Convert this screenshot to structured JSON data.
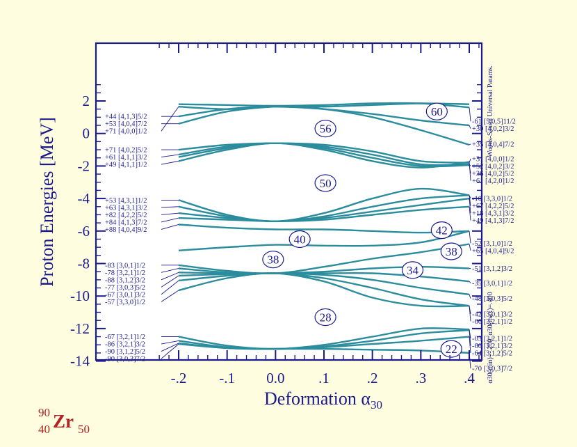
{
  "chart_data": {
    "type": "line",
    "title": "",
    "xlabel": "Deformation α30",
    "ylabel": "Proton Energies [MeV]",
    "xlim": [
      -0.25,
      0.45
    ],
    "ylim": [
      -15.3,
      3.2
    ],
    "x_ticks": [
      -0.2,
      -0.1,
      0.0,
      0.1,
      0.2,
      0.3,
      0.4
    ],
    "x_tick_labels": [
      "-.2",
      "-.1",
      "0.0",
      ".1",
      ".2",
      ".3",
      ".4"
    ],
    "y_ticks": [
      2,
      0,
      -2,
      -4,
      -6,
      -8,
      -10,
      -12,
      -14
    ],
    "y_tick_labels": [
      "2",
      "0",
      "-2",
      "-4",
      "-6",
      "-8",
      "-10",
      "-12",
      "-14"
    ],
    "grid": false,
    "line_color": "#2a8c9c",
    "axis_color": "#1a1a8c",
    "nucleus": {
      "mass": "90",
      "charge": "40",
      "symbol": "Zr",
      "neutrons": "50"
    },
    "side_notes": {
      "model": "Woods-Saxon Universal Params.",
      "range": "α30(min)=-.200, α30(max)=.400"
    },
    "x": [
      -0.2,
      -0.1,
      0.0,
      0.1,
      0.2,
      0.3,
      0.4
    ],
    "series": [
      {
        "values": [
          1.05,
          1.5,
          1.65,
          1.5,
          1.2,
          0.8,
          0.5
        ]
      },
      {
        "values": [
          0.6,
          1.35,
          1.65,
          1.65,
          1.75,
          1.85,
          1.8
        ]
      },
      {
        "values": [
          1.8,
          1.75,
          1.7,
          1.75,
          1.85,
          1.85,
          1.6
        ]
      },
      {
        "values": [
          1.65,
          1.5,
          1.65,
          1.5,
          1.0,
          0.2,
          -0.7
        ]
      },
      {
        "values": [
          -1.0,
          -0.7,
          -0.6,
          -0.7,
          -1.1,
          -1.7,
          -1.8
        ]
      },
      {
        "values": [
          -1.3,
          -0.8,
          -0.6,
          -0.8,
          -1.3,
          -1.9,
          -1.9
        ]
      },
      {
        "values": [
          -1.45,
          -0.9,
          -0.6,
          -0.9,
          -1.5,
          -2.0,
          -1.95
        ]
      },
      {
        "values": [
          -1.7,
          -1.0,
          -0.6,
          -1.0,
          -1.7,
          -2.1,
          -1.75
        ]
      },
      {
        "values": [
          -4.1,
          -5.0,
          -5.4,
          -4.9,
          -4.0,
          -3.4,
          -3.8
        ]
      },
      {
        "values": [
          -4.5,
          -5.1,
          -5.4,
          -5.1,
          -4.5,
          -4.0,
          -3.8
        ]
      },
      {
        "values": [
          -4.9,
          -5.2,
          -5.4,
          -5.2,
          -4.8,
          -4.4,
          -4.0
        ]
      },
      {
        "values": [
          -5.2,
          -5.3,
          -5.4,
          -5.3,
          -5.0,
          -4.7,
          -4.5
        ]
      },
      {
        "values": [
          -5.6,
          -5.8,
          -5.9,
          -5.9,
          -6.0,
          -6.1,
          -6.0
        ]
      },
      {
        "values": [
          -7.2,
          -7.0,
          -6.85,
          -6.9,
          -6.9,
          -6.7,
          -6.0
        ]
      },
      {
        "values": [
          -8.1,
          -8.45,
          -8.6,
          -8.2,
          -7.7,
          -7.3,
          -6.8
        ]
      },
      {
        "values": [
          -8.3,
          -8.55,
          -8.6,
          -8.5,
          -8.3,
          -8.2,
          -8.3
        ]
      },
      {
        "values": [
          -8.55,
          -8.6,
          -8.6,
          -8.6,
          -8.6,
          -8.8,
          -9.1
        ]
      },
      {
        "values": [
          -8.75,
          -8.65,
          -8.6,
          -8.7,
          -9.0,
          -9.5,
          -9.9
        ]
      },
      {
        "values": [
          -9.05,
          -8.75,
          -8.6,
          -8.9,
          -9.5,
          -10.2,
          -10.6
        ]
      },
      {
        "values": [
          -9.65,
          -8.9,
          -8.6,
          -9.1,
          -10.1,
          -10.6,
          -10.6
        ]
      },
      {
        "values": [
          -12.5,
          -13.05,
          -13.25,
          -13.0,
          -12.5,
          -12.0,
          -12.05
        ]
      },
      {
        "values": [
          -12.75,
          -13.15,
          -13.25,
          -13.1,
          -12.75,
          -12.3,
          -12.1
        ]
      },
      {
        "values": [
          -12.9,
          -13.2,
          -13.25,
          -13.15,
          -12.95,
          -12.75,
          -12.5
        ]
      },
      {
        "values": [
          -12.95,
          -13.2,
          -13.25,
          -13.25,
          -13.3,
          -13.35,
          -13.5
        ]
      }
    ],
    "left_labels": [
      {
        "text": "+44 [4,1,3]5/2",
        "y": 1.05,
        "x_ends": -0.2
      },
      {
        "text": "+53 [4,0,4]7/2",
        "y": 0.6
      },
      {
        "text": "+71 [4,0,0]1/2",
        "y": 0.15
      },
      {
        "text": "+71 [4,0,2]5/2",
        "y": -1.0
      },
      {
        "text": "+61 [4,1,1]3/2",
        "y": -1.45
      },
      {
        "text": "+49 [4,1,1]1/2",
        "y": -1.9
      },
      {
        "text": "+53 [4,3,1]1/2",
        "y": -4.1
      },
      {
        "text": "+63 [4,3,1]3/2",
        "y": -4.55
      },
      {
        "text": "+82 [4,2,2]5/2",
        "y": -5.0
      },
      {
        "text": "+84 [4,1,3]7/2",
        "y": -5.45
      },
      {
        "text": "+88 [4,0,4]9/2",
        "y": -5.9
      },
      {
        "text": "-83 [3,0,1]1/2",
        "y": -8.1
      },
      {
        "text": "-78 [3,2,1]1/2",
        "y": -8.55
      },
      {
        "text": "-88 [3,1,2]3/2",
        "y": -9.0
      },
      {
        "text": "-77 [3,0,3]5/2",
        "y": -9.45
      },
      {
        "text": "-67 [3,0,1]3/2",
        "y": -9.9
      },
      {
        "text": "-57 [3,3,0]1/2",
        "y": -10.35
      },
      {
        "text": "-67 [3,2,1]1/2",
        "y": -12.5
      },
      {
        "text": "-86 [3,2,1]3/2",
        "y": -12.95
      },
      {
        "text": "-90 [3,1,2]5/2",
        "y": -13.4
      },
      {
        "text": "-90 [3,0,3]7/2",
        "y": -13.85
      }
    ],
    "right_labels": [
      {
        "text": "-61 [5,0,5]11/2",
        "y": 0.75
      },
      {
        "text": "+30 [4,0,2]3/2",
        "y": 0.3
      },
      {
        "text": "+35 [4,0,4]7/2",
        "y": -0.65
      },
      {
        "text": "+31 [4,0,0]1/2",
        "y": -1.55
      },
      {
        "text": "+52 [4,0,2]3/2",
        "y": -2.0
      },
      {
        "text": "+36 [4,0,2]5/2",
        "y": -2.45
      },
      {
        "text": "+61 [4,2,0]1/2",
        "y": -2.9
      },
      {
        "text": "-10 [3,3,0]1/2",
        "y": -4.0
      },
      {
        "text": "+67 [4,2,2]5/2",
        "y": -4.45
      },
      {
        "text": "+18 [4,3,1]3/2",
        "y": -4.9
      },
      {
        "text": "+49 [4,1,3]7/2",
        "y": -5.35
      },
      {
        "text": "-52 [3,1,0]1/2",
        "y": -6.75
      },
      {
        "text": "+65 [4,0,4]9/2",
        "y": -7.2
      },
      {
        "text": "-51 [3,1,2]3/2",
        "y": -8.3
      },
      {
        "text": "-35 [3,0,1]1/2",
        "y": -9.2
      },
      {
        "text": "-48 [3,0,3]5/2",
        "y": -10.15
      },
      {
        "text": "-42 [3,0,1]3/2",
        "y": -11.1
      },
      {
        "text": "-66 [3,2,1]1/2",
        "y": -11.55
      },
      {
        "text": "-03 [3,2,1]1/2",
        "y": -12.6
      },
      {
        "text": "-60 [3,2,1]3/2",
        "y": -13.05
      },
      {
        "text": "-64 [3,1,2]5/2",
        "y": -13.5
      },
      {
        "text": "-70 [3,0,3]7/2",
        "y": -14.45
      }
    ],
    "gap_labels": [
      {
        "text": "60",
        "x": 0.333,
        "y": 1.35
      },
      {
        "text": "56",
        "x": 0.103,
        "y": 0.3
      },
      {
        "text": "50",
        "x": 0.103,
        "y": -3.05
      },
      {
        "text": "42",
        "x": 0.343,
        "y": -5.95
      },
      {
        "text": "40",
        "x": 0.05,
        "y": -6.5
      },
      {
        "text": "38",
        "x": 0.363,
        "y": -7.25
      },
      {
        "text": "38",
        "x": -0.005,
        "y": -7.75
      },
      {
        "text": "34",
        "x": 0.283,
        "y": -8.4
      },
      {
        "text": "28",
        "x": 0.103,
        "y": -11.3
      },
      {
        "text": "22",
        "x": 0.363,
        "y": -13.25
      }
    ]
  }
}
